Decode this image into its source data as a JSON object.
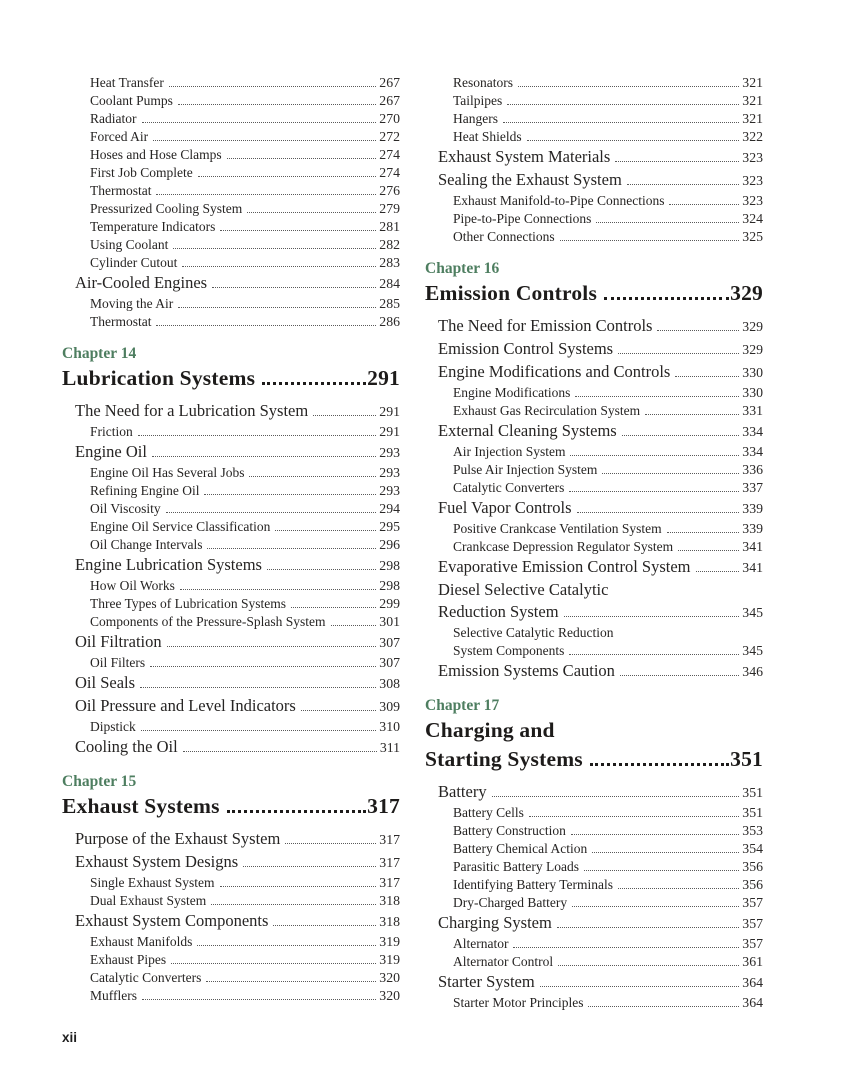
{
  "page": {
    "footer_page_number": "xii",
    "accent_green": "#4e7e60",
    "text_color": "#262423"
  },
  "toc": {
    "columns": [
      {
        "blocks": [
          {
            "type": "entries",
            "entries": [
              {
                "level": 2,
                "lines": [
                  "Heat Transfer"
                ],
                "page": "267"
              },
              {
                "level": 2,
                "lines": [
                  "Coolant Pumps"
                ],
                "page": "267"
              },
              {
                "level": 2,
                "lines": [
                  "Radiator"
                ],
                "page": "270"
              },
              {
                "level": 2,
                "lines": [
                  "Forced Air"
                ],
                "page": "272"
              },
              {
                "level": 2,
                "lines": [
                  "Hoses and Hose Clamps"
                ],
                "page": "274"
              },
              {
                "level": 2,
                "lines": [
                  "First Job Complete"
                ],
                "page": "274"
              },
              {
                "level": 2,
                "lines": [
                  "Thermostat"
                ],
                "page": "276"
              },
              {
                "level": 2,
                "lines": [
                  "Pressurized Cooling System"
                ],
                "page": "279"
              },
              {
                "level": 2,
                "lines": [
                  "Temperature Indicators"
                ],
                "page": "281"
              },
              {
                "level": 2,
                "lines": [
                  "Using Coolant"
                ],
                "page": "282"
              },
              {
                "level": 2,
                "lines": [
                  "Cylinder Cutout"
                ],
                "page": "283"
              },
              {
                "level": 1,
                "lines": [
                  "Air-Cooled Engines"
                ],
                "page": "284"
              },
              {
                "level": 2,
                "lines": [
                  "Moving the Air"
                ],
                "page": "285"
              },
              {
                "level": 2,
                "lines": [
                  "Thermostat"
                ],
                "page": "286"
              }
            ]
          },
          {
            "type": "chapter",
            "label": "Chapter 14",
            "title_lines": [
              "Lubrication Systems"
            ],
            "page": "291"
          },
          {
            "type": "entries",
            "entries": [
              {
                "level": 1,
                "lines": [
                  "The Need for a Lubrication System"
                ],
                "page": "291"
              },
              {
                "level": 2,
                "lines": [
                  "Friction"
                ],
                "page": "291"
              },
              {
                "level": 1,
                "lines": [
                  "Engine Oil"
                ],
                "page": "293"
              },
              {
                "level": 2,
                "lines": [
                  "Engine Oil Has Several Jobs"
                ],
                "page": "293"
              },
              {
                "level": 2,
                "lines": [
                  "Refining Engine Oil"
                ],
                "page": "293"
              },
              {
                "level": 2,
                "lines": [
                  "Oil Viscosity"
                ],
                "page": "294"
              },
              {
                "level": 2,
                "lines": [
                  "Engine Oil Service Classification"
                ],
                "page": "295"
              },
              {
                "level": 2,
                "lines": [
                  "Oil Change Intervals"
                ],
                "page": "296"
              },
              {
                "level": 1,
                "lines": [
                  "Engine Lubrication Systems"
                ],
                "page": "298"
              },
              {
                "level": 2,
                "lines": [
                  "How Oil Works"
                ],
                "page": "298"
              },
              {
                "level": 2,
                "lines": [
                  "Three Types of Lubrication Systems"
                ],
                "page": "299"
              },
              {
                "level": 2,
                "lines": [
                  "Components of the Pressure-Splash System"
                ],
                "page": "301"
              },
              {
                "level": 1,
                "lines": [
                  "Oil Filtration"
                ],
                "page": "307"
              },
              {
                "level": 2,
                "lines": [
                  "Oil Filters"
                ],
                "page": "307"
              },
              {
                "level": 1,
                "lines": [
                  "Oil Seals"
                ],
                "page": "308"
              },
              {
                "level": 1,
                "lines": [
                  "Oil Pressure and Level Indicators"
                ],
                "page": "309"
              },
              {
                "level": 2,
                "lines": [
                  "Dipstick"
                ],
                "page": "310"
              },
              {
                "level": 1,
                "lines": [
                  "Cooling the Oil"
                ],
                "page": "311"
              }
            ]
          },
          {
            "type": "chapter",
            "label": "Chapter 15",
            "title_lines": [
              "Exhaust Systems"
            ],
            "page": "317"
          },
          {
            "type": "entries",
            "entries": [
              {
                "level": 1,
                "lines": [
                  "Purpose of the Exhaust System"
                ],
                "page": "317"
              },
              {
                "level": 1,
                "lines": [
                  "Exhaust System Designs"
                ],
                "page": "317"
              },
              {
                "level": 2,
                "lines": [
                  "Single Exhaust System"
                ],
                "page": "317"
              },
              {
                "level": 2,
                "lines": [
                  "Dual Exhaust System"
                ],
                "page": "318"
              },
              {
                "level": 1,
                "lines": [
                  "Exhaust System Components"
                ],
                "page": "318"
              },
              {
                "level": 2,
                "lines": [
                  "Exhaust Manifolds"
                ],
                "page": "319"
              },
              {
                "level": 2,
                "lines": [
                  "Exhaust Pipes"
                ],
                "page": "319"
              },
              {
                "level": 2,
                "lines": [
                  "Catalytic Converters"
                ],
                "page": "320"
              },
              {
                "level": 2,
                "lines": [
                  "Mufflers"
                ],
                "page": "320"
              }
            ]
          }
        ]
      },
      {
        "blocks": [
          {
            "type": "entries",
            "entries": [
              {
                "level": 2,
                "lines": [
                  "Resonators"
                ],
                "page": "321"
              },
              {
                "level": 2,
                "lines": [
                  "Tailpipes"
                ],
                "page": "321"
              },
              {
                "level": 2,
                "lines": [
                  "Hangers"
                ],
                "page": "321"
              },
              {
                "level": 2,
                "lines": [
                  "Heat Shields"
                ],
                "page": "322"
              },
              {
                "level": 1,
                "lines": [
                  "Exhaust System Materials"
                ],
                "page": "323"
              },
              {
                "level": 1,
                "lines": [
                  "Sealing the Exhaust System"
                ],
                "page": "323"
              },
              {
                "level": 2,
                "lines": [
                  "Exhaust Manifold-to-Pipe Connections"
                ],
                "page": "323"
              },
              {
                "level": 2,
                "lines": [
                  "Pipe-to-Pipe Connections"
                ],
                "page": "324"
              },
              {
                "level": 2,
                "lines": [
                  "Other Connections"
                ],
                "page": "325"
              }
            ]
          },
          {
            "type": "chapter",
            "label": "Chapter 16",
            "title_lines": [
              "Emission Controls"
            ],
            "page": "329"
          },
          {
            "type": "entries",
            "entries": [
              {
                "level": 1,
                "lines": [
                  "The Need for Emission Controls"
                ],
                "page": "329"
              },
              {
                "level": 1,
                "lines": [
                  "Emission Control Systems"
                ],
                "page": "329"
              },
              {
                "level": 1,
                "lines": [
                  "Engine Modifications and Controls"
                ],
                "page": "330"
              },
              {
                "level": 2,
                "lines": [
                  "Engine Modifications"
                ],
                "page": "330"
              },
              {
                "level": 2,
                "lines": [
                  "Exhaust Gas Recirculation System"
                ],
                "page": "331"
              },
              {
                "level": 1,
                "lines": [
                  "External Cleaning Systems"
                ],
                "page": "334"
              },
              {
                "level": 2,
                "lines": [
                  "Air Injection System"
                ],
                "page": "334"
              },
              {
                "level": 2,
                "lines": [
                  "Pulse Air Injection System"
                ],
                "page": "336"
              },
              {
                "level": 2,
                "lines": [
                  "Catalytic Converters"
                ],
                "page": "337"
              },
              {
                "level": 1,
                "lines": [
                  "Fuel Vapor Controls"
                ],
                "page": "339"
              },
              {
                "level": 2,
                "lines": [
                  "Positive Crankcase Ventilation System"
                ],
                "page": "339"
              },
              {
                "level": 2,
                "lines": [
                  "Crankcase Depression Regulator System"
                ],
                "page": "341"
              },
              {
                "level": 1,
                "lines": [
                  "Evaporative Emission Control System"
                ],
                "page": "341"
              },
              {
                "level": 1,
                "lines": [
                  "Diesel Selective Catalytic",
                  "Reduction System"
                ],
                "page": "345"
              },
              {
                "level": 2,
                "lines": [
                  "Selective Catalytic Reduction",
                  "System Components"
                ],
                "page": "345"
              },
              {
                "level": 1,
                "lines": [
                  "Emission Systems Caution"
                ],
                "page": "346"
              }
            ]
          },
          {
            "type": "chapter",
            "label": "Chapter 17",
            "title_lines": [
              "Charging and",
              "Starting Systems"
            ],
            "page": "351"
          },
          {
            "type": "entries",
            "entries": [
              {
                "level": 1,
                "lines": [
                  "Battery"
                ],
                "page": "351"
              },
              {
                "level": 2,
                "lines": [
                  "Battery Cells"
                ],
                "page": "351"
              },
              {
                "level": 2,
                "lines": [
                  "Battery Construction"
                ],
                "page": "353"
              },
              {
                "level": 2,
                "lines": [
                  "Battery Chemical Action"
                ],
                "page": "354"
              },
              {
                "level": 2,
                "lines": [
                  "Parasitic Battery Loads"
                ],
                "page": "356"
              },
              {
                "level": 2,
                "lines": [
                  "Identifying Battery Terminals"
                ],
                "page": "356"
              },
              {
                "level": 2,
                "lines": [
                  "Dry-Charged Battery"
                ],
                "page": "357"
              },
              {
                "level": 1,
                "lines": [
                  "Charging System"
                ],
                "page": "357"
              },
              {
                "level": 2,
                "lines": [
                  "Alternator"
                ],
                "page": "357"
              },
              {
                "level": 2,
                "lines": [
                  "Alternator Control"
                ],
                "page": "361"
              },
              {
                "level": 1,
                "lines": [
                  "Starter System"
                ],
                "page": "364"
              },
              {
                "level": 2,
                "lines": [
                  "Starter Motor Principles"
                ],
                "page": "364"
              }
            ]
          }
        ]
      }
    ]
  }
}
